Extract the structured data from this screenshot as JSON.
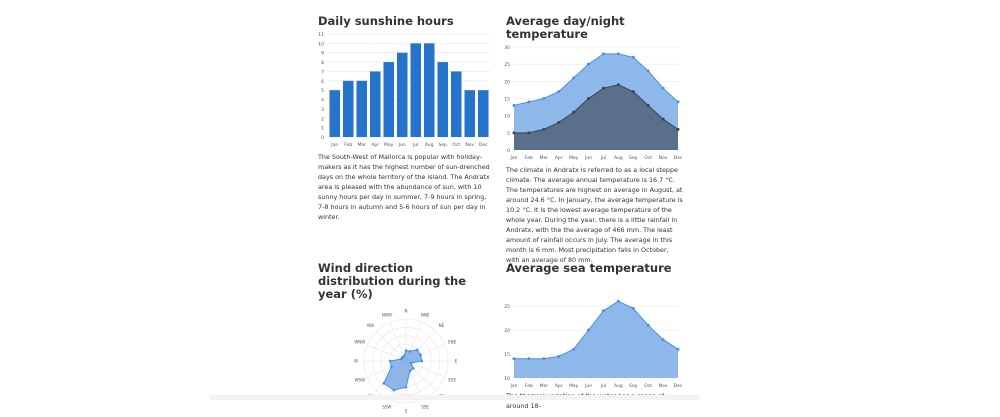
{
  "sunshine": {
    "title": "Daily sunshine hours",
    "text": "The South-West of Mallorca is popular with holiday-makers as it has the highest number of sun-drenched days on the whole territory of the island. The Andratx area is pleased with the abundance of sun, with 10 sunny hours per day in summer, 7-9 hours in spring, 7-8 hours in autumn and 5-6 hours of sun per day in winter."
  },
  "temperature": {
    "title": "Average day/night temperature",
    "text": "The climate in Andratx is referred to as a local steppe climate. The average annual temperature is 16.7 °C. The temperatures are highest on average in August, at around 24.6 °C. In January, the average temperature is 10.2 °C. It is the lowest average temperature of the whole year. During the year, there is a little rainfall in Andratx, with the the average of 466 mm. The least amount of rainfall occurs in July. The average in this month is 6 mm. Most precipitation falls in October, with an average of 80 mm."
  },
  "wind": {
    "title": "Wind direction distribution during the year (%)"
  },
  "sea": {
    "title": "Average sea temperature",
    "text": "The thermal variation of the water has a range of around 18-"
  },
  "colors": {
    "bar": "#2673cc",
    "day_fill": "#8eb8ea",
    "day_line": "#4a90e2",
    "night_fill": "#5a6f8a",
    "night_line": "#3a4656",
    "wind_fill": "#6b9fdf",
    "grid": "#e6e6e6",
    "axis_text": "#555555"
  },
  "chart_data": [
    {
      "id": "sunshine",
      "type": "bar",
      "categories": [
        "Jan",
        "Feb",
        "Mar",
        "Apr",
        "May",
        "Jun",
        "Jul",
        "Aug",
        "Sep",
        "Oct",
        "Nov",
        "Dec"
      ],
      "values": [
        5,
        6,
        6,
        7,
        8,
        9,
        10,
        10,
        8,
        7,
        5,
        5
      ],
      "yticks": [
        0,
        1,
        2,
        3,
        4,
        5,
        6,
        7,
        8,
        9,
        10,
        11
      ],
      "ylim": [
        0,
        11
      ],
      "grid": true,
      "title": "Daily sunshine hours"
    },
    {
      "id": "temperature",
      "type": "area",
      "categories": [
        "Jan",
        "Feb",
        "Mar",
        "Apr",
        "May",
        "Jun",
        "Jul",
        "Aug",
        "Sep",
        "Oct",
        "Nov",
        "Dec"
      ],
      "series": [
        {
          "values": [
            13,
            14,
            15,
            17,
            21,
            25,
            28,
            28,
            27,
            23,
            18,
            14
          ]
        },
        {
          "values": [
            5,
            5,
            6,
            8,
            11,
            15,
            18,
            19,
            17,
            13,
            9,
            6
          ]
        }
      ],
      "yticks": [
        0,
        5,
        10,
        15,
        20,
        25,
        30
      ],
      "ylim": [
        0,
        30
      ],
      "grid": true,
      "title": "Average day/night temperature"
    },
    {
      "id": "wind",
      "type": "radar",
      "categories": [
        "N",
        "NNE",
        "NE",
        "ENE",
        "E",
        "ESE",
        "SE",
        "SSE",
        "S",
        "SSW",
        "SW",
        "WSW",
        "W",
        "WNW",
        "NW",
        "NNW"
      ],
      "values": [
        2,
        2,
        3,
        3,
        3,
        1,
        2,
        2,
        5,
        6,
        6,
        3,
        3,
        1,
        1,
        1
      ],
      "rmax": 8,
      "title": "Wind direction distribution during the year (%)"
    },
    {
      "id": "sea",
      "type": "area",
      "categories": [
        "Jan",
        "Feb",
        "Mar",
        "Apr",
        "May",
        "Jun",
        "Jul",
        "Aug",
        "Sep",
        "Oct",
        "Nov",
        "Dec"
      ],
      "values": [
        14,
        14,
        14,
        14.5,
        16,
        20,
        24,
        26,
        24.5,
        21,
        18,
        16
      ],
      "yticks": [
        10,
        15,
        20,
        25
      ],
      "ylim": [
        10,
        30
      ],
      "grid": true,
      "title": "Average sea temperature"
    }
  ]
}
